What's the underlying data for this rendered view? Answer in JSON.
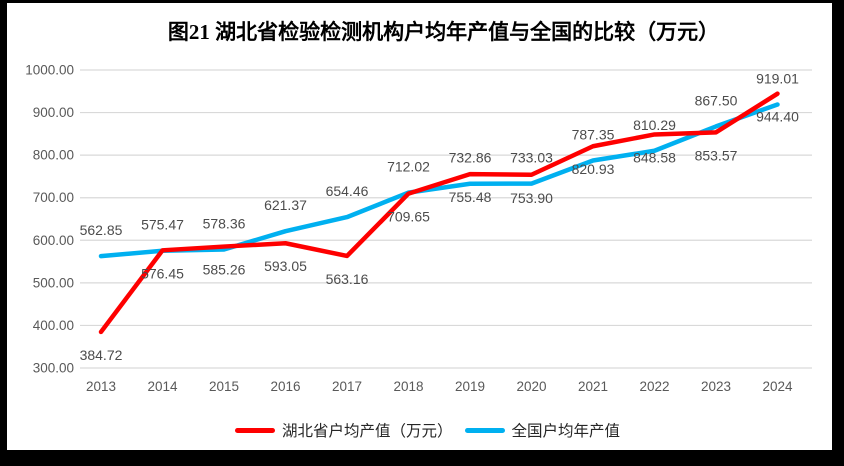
{
  "chart_data": {
    "type": "line",
    "title": "图21 湖北省检验检测机构户均年产值与全国的比较（万元）",
    "categories": [
      "2013",
      "2014",
      "2015",
      "2016",
      "2017",
      "2018",
      "2019",
      "2020",
      "2021",
      "2022",
      "2023",
      "2024"
    ],
    "series": [
      {
        "id": "hubei",
        "name": "湖北省户均产值（万元）",
        "color": "#FE0000",
        "z": 2,
        "label_position": "below",
        "values": [
          384.72,
          576.45,
          585.26,
          593.05,
          563.16,
          709.65,
          755.48,
          753.9,
          820.93,
          848.58,
          853.57,
          944.4
        ]
      },
      {
        "id": "national",
        "name": "全国户均年产值",
        "color": "#00B0F0",
        "z": 1,
        "label_position": "above",
        "values": [
          562.85,
          575.47,
          578.36,
          621.37,
          654.46,
          712.02,
          732.86,
          733.03,
          787.35,
          810.29,
          867.5,
          919.01
        ]
      }
    ],
    "ylim": [
      300,
      1000
    ],
    "yticks": [
      300,
      400,
      500,
      600,
      700,
      800,
      900,
      1000
    ],
    "ytick_labels": [
      "300.00",
      "400.00",
      "500.00",
      "600.00",
      "700.00",
      "800.00",
      "900.00",
      "1000.00"
    ],
    "label_format": "0.00",
    "grid": "horizontal",
    "legend_position": "bottom",
    "colors": {
      "gridline": "#D9D9D9",
      "tick_label": "#595959",
      "data_label": "#4C4C4C",
      "title": "#000000",
      "legend_text": "#262626",
      "frame": "#000000",
      "background": "#FFFFFF"
    }
  }
}
